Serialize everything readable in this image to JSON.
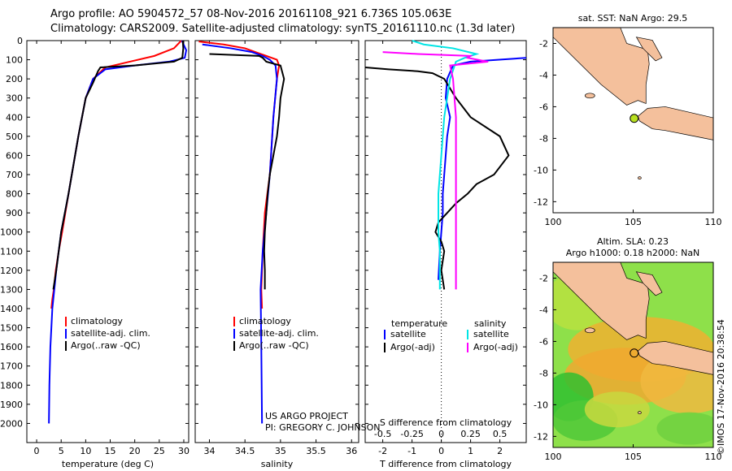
{
  "header": {
    "line1": "Argo profile: AO 5904572_57 08-Nov-2016 20161108_921 6.736S 105.063E",
    "line2": "Climatology: CARS2009. Satellite-adjusted climatology: synTS_20161110.nc (1.3d later)"
  },
  "credits": {
    "project": "US ARGO PROJECT",
    "pi": "PI: GREGORY C. JOHNSON"
  },
  "stamp": "©IMOS 17-Nov-2016 20:38:54",
  "colors": {
    "climatology": "#ff0000",
    "satellite": "#0000ff",
    "argo": "#000000",
    "sal_satellite": "#00e5e5",
    "sal_argo": "#ff00ff",
    "land": "#f4c09c",
    "ocean_bg": "#ffffff"
  },
  "chart_data": [
    {
      "id": "temperature",
      "type": "line",
      "xlabel": "temperature (deg C)",
      "ylabel": "pressure",
      "xlim": [
        -2,
        31
      ],
      "ylim": [
        2100,
        0
      ],
      "xticks": [
        "0",
        "5",
        "10",
        "15",
        "20",
        "25",
        "30"
      ],
      "yticks": [
        "0",
        "100",
        "200",
        "300",
        "400",
        "500",
        "600",
        "700",
        "800",
        "900",
        "1000",
        "1100",
        "1200",
        "1300",
        "1400",
        "1500",
        "1600",
        "1700",
        "1800",
        "1900",
        "2000"
      ],
      "legend": [
        "climatology",
        "satellite-adj. clim.",
        "Argo(..raw -QC)"
      ],
      "series": [
        {
          "name": "climatology",
          "color": "#ff0000",
          "x": [
            29.5,
            28,
            24,
            19,
            14,
            11.5,
            10,
            8.5,
            6.5,
            5.2,
            4.5,
            3.9,
            3.5,
            3.2,
            3.0
          ],
          "y": [
            0,
            40,
            80,
            110,
            140,
            200,
            300,
            500,
            800,
            1000,
            1100,
            1200,
            1300,
            1350,
            1400
          ]
        },
        {
          "name": "satellite-adj. clim.",
          "color": "#0000ff",
          "x": [
            29.6,
            30.5,
            30.2,
            27,
            20,
            14,
            11.5,
            10,
            8.5,
            6.5,
            5,
            4,
            3.2,
            2.8,
            2.6,
            2.5
          ],
          "y": [
            0,
            50,
            90,
            110,
            130,
            150,
            200,
            300,
            500,
            800,
            1000,
            1200,
            1400,
            1600,
            1800,
            2000
          ]
        },
        {
          "name": "Argo(..raw -QC)",
          "color": "#000000",
          "x": [
            29.8,
            29.9,
            29.7,
            28,
            20,
            13,
            12.5,
            11.5,
            10,
            8.5,
            6.5,
            5,
            4,
            3.4
          ],
          "y": [
            0,
            40,
            90,
            110,
            130,
            140,
            160,
            220,
            300,
            500,
            800,
            1000,
            1200,
            1300
          ]
        }
      ]
    },
    {
      "id": "salinity",
      "type": "line",
      "xlabel": "salinity",
      "xlim": [
        33.8,
        36.1
      ],
      "ylim": [
        2100,
        0
      ],
      "xticks": [
        "34",
        "34.5",
        "35",
        "35.5",
        "36"
      ],
      "legend": [
        "climatology",
        "satellite-adj. clim.",
        "Argo(..raw -QC)"
      ],
      "series": [
        {
          "name": "climatology",
          "color": "#ff0000",
          "x": [
            33.85,
            34.2,
            34.5,
            34.65,
            34.8,
            34.95,
            34.98,
            34.95,
            34.9,
            34.85,
            34.78,
            34.75,
            34.73,
            34.74
          ],
          "y": [
            5,
            20,
            40,
            60,
            80,
            100,
            130,
            200,
            400,
            700,
            900,
            1100,
            1300,
            1400
          ]
        },
        {
          "name": "satellite-adj. clim.",
          "color": "#0000ff",
          "x": [
            33.9,
            34.3,
            34.6,
            34.75,
            34.85,
            34.93,
            34.95,
            34.9,
            34.85,
            34.8,
            34.75,
            34.72,
            34.73,
            34.74
          ],
          "y": [
            20,
            40,
            60,
            80,
            100,
            130,
            200,
            400,
            700,
            900,
            1100,
            1300,
            1600,
            2000
          ]
        },
        {
          "name": "Argo(..raw -QC)",
          "color": "#000000",
          "x": [
            34.0,
            34.7,
            34.75,
            34.8,
            35.0,
            35.05,
            35.0,
            34.98,
            34.95,
            34.9,
            34.85,
            34.82,
            34.8,
            34.78,
            34.77,
            34.78,
            34.78
          ],
          "y": [
            70,
            80,
            90,
            110,
            130,
            200,
            300,
            400,
            500,
            600,
            700,
            800,
            900,
            1000,
            1100,
            1200,
            1300
          ]
        }
      ]
    },
    {
      "id": "difference",
      "type": "line",
      "xlabel": "T difference from climatology",
      "xlabel_top": "S difference from climatology",
      "xlim": [
        -2.6,
        2.9
      ],
      "ylim": [
        2100,
        0
      ],
      "xticks": [
        "-2",
        "-1",
        "0",
        "1",
        "2"
      ],
      "sticks": [
        "-0.5",
        "-0.25",
        "0",
        "0.25",
        "0.5"
      ],
      "legend_headers": [
        "temperature",
        "salinity"
      ],
      "legend": [
        "satellite",
        "Argo(-adj)",
        "satellite",
        "Argo(-adj)"
      ],
      "series": [
        {
          "name": "T satellite",
          "color": "#0000ff",
          "x": [
            2.9,
            1.0,
            0.4,
            0.2,
            0.15,
            0.3,
            0.2,
            0.15,
            0.1,
            0.05,
            0.05,
            0.0,
            -0.05,
            -0.1
          ],
          "y": [
            90,
            110,
            130,
            200,
            300,
            400,
            500,
            600,
            700,
            800,
            900,
            1000,
            1100,
            1250
          ]
        },
        {
          "name": "T Argo(-adj)",
          "color": "#000000",
          "x": [
            -2.6,
            -1.8,
            -0.8,
            -0.3,
            0.1,
            0.5,
            1.0,
            2.0,
            2.3,
            1.8,
            1.2,
            0.9,
            0.5,
            0.2,
            -0.1,
            -0.2,
            0.0,
            0.1,
            0.0,
            0.1
          ],
          "y": [
            140,
            150,
            160,
            170,
            200,
            300,
            400,
            500,
            600,
            700,
            750,
            800,
            850,
            900,
            950,
            1000,
            1050,
            1100,
            1200,
            1300
          ]
        },
        {
          "name": "S satellite",
          "color": "#00e5e5",
          "x": [
            -1.0,
            -0.6,
            0.4,
            1.2,
            0.8,
            0.5,
            0.3,
            0.1,
            0.0,
            -0.1,
            -0.1,
            -0.05,
            -0.05
          ],
          "y": [
            0,
            20,
            40,
            70,
            90,
            110,
            200,
            400,
            600,
            800,
            1000,
            1100,
            1300
          ]
        },
        {
          "name": "S Argo(-adj)",
          "color": "#ff00ff",
          "x": [
            -2.0,
            -0.8,
            1.0,
            0.9,
            1.6,
            0.3,
            0.4,
            0.5,
            0.5,
            0.5,
            0.5
          ],
          "y": [
            60,
            70,
            80,
            90,
            110,
            130,
            200,
            400,
            700,
            1000,
            1300
          ]
        }
      ]
    },
    {
      "id": "map_sst",
      "type": "map",
      "title": "sat. SST: NaN Argo: 29.5",
      "xticks": [
        "100",
        "105",
        "110"
      ],
      "yticks": [
        "-2",
        "-4",
        "-6",
        "-8",
        "-10",
        "-12"
      ],
      "lon_range": [
        100,
        110
      ],
      "lat_range": [
        -12.7,
        -1.0
      ],
      "marker": {
        "lon": 105.063,
        "lat": -6.736
      }
    },
    {
      "id": "map_sla",
      "type": "map",
      "title1": "Altim. SLA: 0.23",
      "title2": "Argo h1000: 0.18 h2000: NaN",
      "xticks": [
        "100",
        "105",
        "110"
      ],
      "yticks": [
        "-2",
        "-4",
        "-6",
        "-8",
        "-10",
        "-12"
      ],
      "lon_range": [
        100,
        110
      ],
      "lat_range": [
        -12.7,
        -1.0
      ],
      "marker": {
        "lon": 105.063,
        "lat": -6.736
      }
    }
  ]
}
